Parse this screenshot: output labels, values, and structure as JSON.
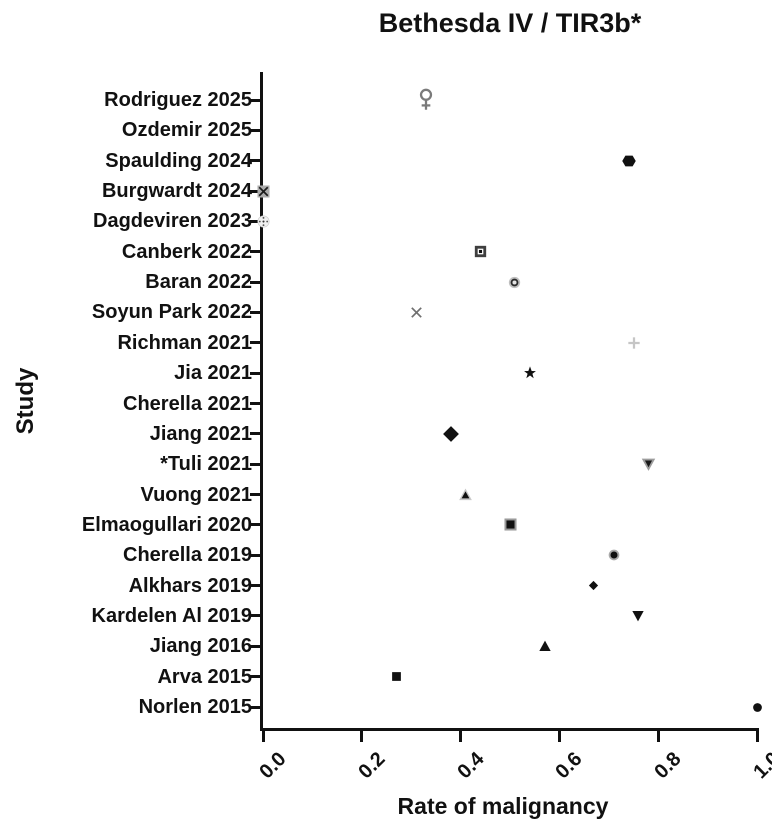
{
  "chart_data": {
    "type": "scatter",
    "orientation": "horizontal",
    "title": "Bethesda IV / TIR3b*",
    "xlabel": "Rate of malignancy",
    "ylabel": "Study",
    "xlim": [
      0.0,
      1.0
    ],
    "xticks": [
      "0.0",
      "0.2",
      "0.4",
      "0.6",
      "0.8",
      "1.0"
    ],
    "grid": false,
    "legend": "none",
    "points": [
      {
        "study": "Rodriguez 2025",
        "value": 0.33,
        "marker": "female-symbol-icon",
        "color": "#7a7a7a"
      },
      {
        "study": "Ozdemir 2025",
        "value": null,
        "marker": "none",
        "color": null
      },
      {
        "study": "Spaulding 2024",
        "value": 0.74,
        "marker": "hexagon-filled-icon",
        "color": "#111111"
      },
      {
        "study": "Burgwardt 2024",
        "value": 0.0,
        "marker": "square-x-pattern-icon",
        "color": "#ababab"
      },
      {
        "study": "Dagdeviren 2023",
        "value": 0.0,
        "marker": "circle-dotted-pattern-icon",
        "color": "#f0f0f0"
      },
      {
        "study": "Canberk 2022",
        "value": 0.44,
        "marker": "square-in-square-icon",
        "color": "#3f3f3f"
      },
      {
        "study": "Baran 2022",
        "value": 0.51,
        "marker": "circle-ring-icon",
        "color": "#bfbfbf"
      },
      {
        "study": "Soyun Park 2022",
        "value": 0.31,
        "marker": "x-cross-icon",
        "color": "#6f6f6f"
      },
      {
        "study": "Richman 2021",
        "value": 0.75,
        "marker": "plus-icon",
        "color": "#c6c6c6"
      },
      {
        "study": "Jia 2021",
        "value": 0.54,
        "marker": "star-filled-icon",
        "color": "#111111"
      },
      {
        "study": "Cherella 2021",
        "value": null,
        "marker": "none",
        "color": null
      },
      {
        "study": "Jiang 2021",
        "value": 0.38,
        "marker": "diamond-filled-large-icon",
        "color": "#111111"
      },
      {
        "study": "*Tuli 2021",
        "value": 0.78,
        "marker": "triangle-down-shaded-icon",
        "color": "#9c9c9c"
      },
      {
        "study": "Vuong 2021",
        "value": 0.41,
        "marker": "triangle-up-haloed-icon",
        "color": "#111111"
      },
      {
        "study": "Elmaogullari 2020",
        "value": 0.5,
        "marker": "square-bordered-icon",
        "color": "#111111"
      },
      {
        "study": "Cherella 2019",
        "value": 0.71,
        "marker": "circle-haloed-icon",
        "color": "#111111"
      },
      {
        "study": "Alkhars 2019",
        "value": 0.67,
        "marker": "diamond-filled-small-icon",
        "color": "#111111"
      },
      {
        "study": "Kardelen Al 2019",
        "value": 0.76,
        "marker": "triangle-down-filled-icon",
        "color": "#111111"
      },
      {
        "study": "Jiang 2016",
        "value": 0.57,
        "marker": "triangle-up-filled-icon",
        "color": "#111111"
      },
      {
        "study": "Arva 2015",
        "value": 0.27,
        "marker": "square-filled-icon",
        "color": "#111111"
      },
      {
        "study": "Norlen 2015",
        "value": 1.0,
        "marker": "circle-filled-icon",
        "color": "#111111"
      }
    ]
  }
}
